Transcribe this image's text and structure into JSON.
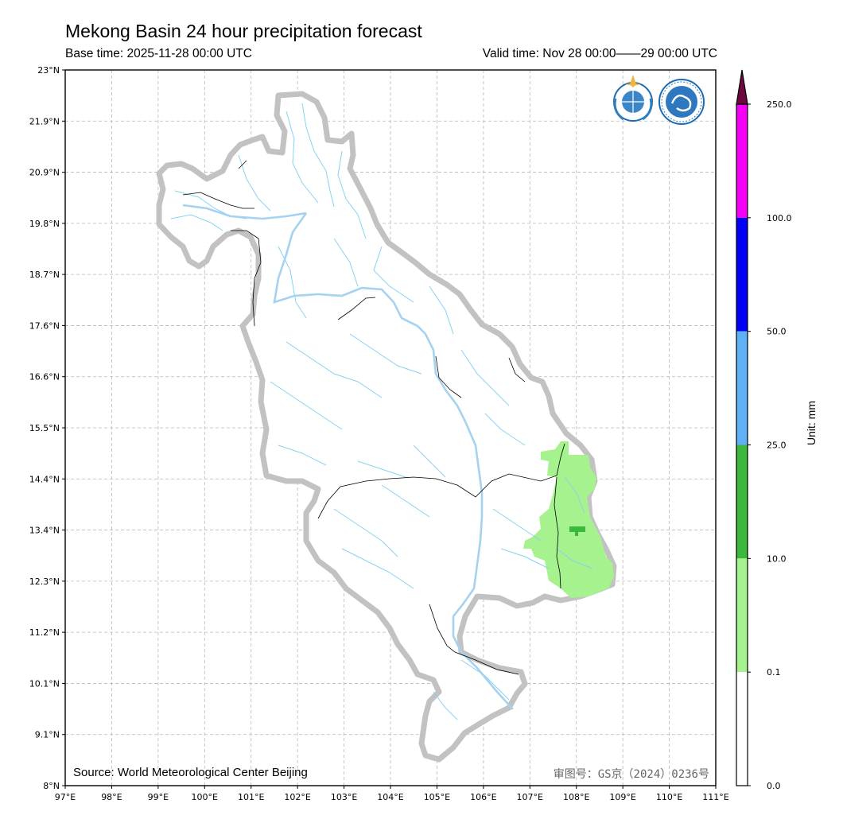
{
  "header": {
    "title": "Mekong Basin 24 hour precipitation forecast",
    "base_time": "Base time: 2025-11-28 00:00 UTC",
    "valid_time": "Valid time: Nov 28 00:00——29 00:00 UTC"
  },
  "axes": {
    "lon_labels": [
      "97°E",
      "98°E",
      "99°E",
      "100°E",
      "101°E",
      "102°E",
      "103°E",
      "104°E",
      "105°E",
      "106°E",
      "107°E",
      "108°E",
      "109°E",
      "110°E",
      "111°E"
    ],
    "lat_labels": [
      "23°N",
      "21.9°N",
      "20.9°N",
      "19.8°N",
      "18.7°N",
      "17.6°N",
      "16.6°N",
      "15.5°N",
      "14.4°N",
      "13.4°N",
      "12.3°N",
      "11.2°N",
      "10.1°N",
      "9.1°N",
      "8°N"
    ]
  },
  "footer": {
    "source": "Source: World Meteorological Center Beijing",
    "approval": "审图号：GS京（2024）0236号"
  },
  "legend": {
    "unit": "Unit: mm",
    "ticks": [
      "250.0",
      "100.0",
      "50.0",
      "25.0",
      "10.0",
      "0.1",
      "0.0"
    ],
    "colors": [
      "#f700f7",
      "#0000f5",
      "#5eb1f7",
      "#3cb83c",
      "#a6f28e",
      "#ffffff"
    ],
    "extend_color": "#700840"
  },
  "logos": [
    "wmo-logo",
    "cma-logo"
  ],
  "colors": {
    "basin_outline": "#bdbdbd",
    "river": "#87d3f0",
    "main_river": "#a5d2ef"
  }
}
